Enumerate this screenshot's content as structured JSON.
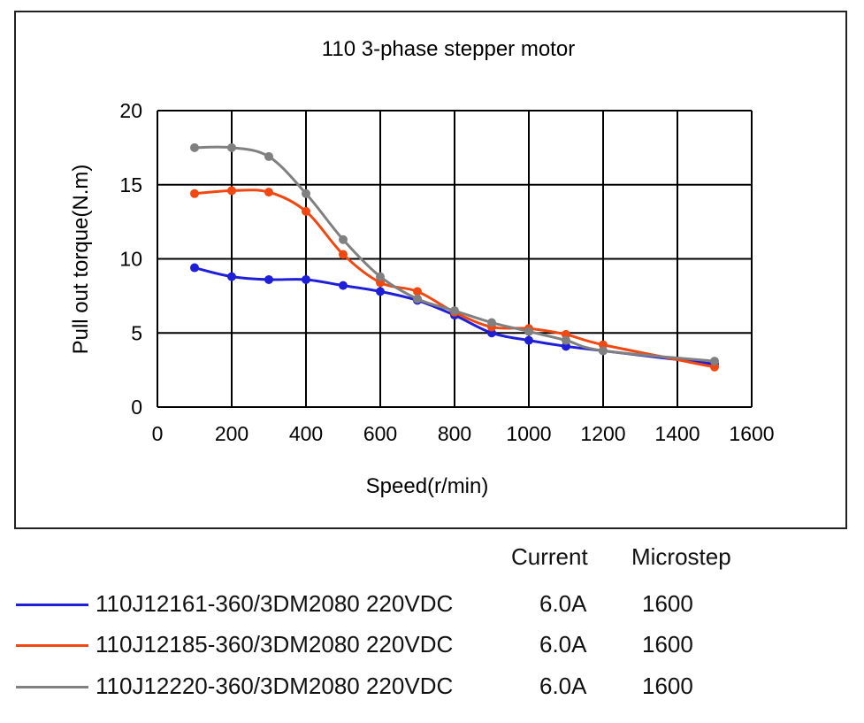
{
  "chart_data": {
    "type": "line",
    "title": "110 3-phase stepper motor",
    "xlabel": "Speed(r/min)",
    "ylabel": "Pull out torque(N.m)",
    "xlim": [
      0,
      1600
    ],
    "ylim": [
      0,
      20
    ],
    "xticks": [
      0,
      200,
      400,
      600,
      800,
      1000,
      1200,
      1400,
      1600
    ],
    "yticks": [
      0,
      5,
      10,
      15,
      20
    ],
    "grid": true,
    "series": [
      {
        "name": "110J12161-360/3DM2080 220VDC",
        "color": "#1f1fd8",
        "x": [
          100,
          200,
          300,
          400,
          500,
          600,
          700,
          800,
          900,
          1000,
          1100,
          1200,
          1500
        ],
        "y": [
          9.4,
          8.8,
          8.6,
          8.6,
          8.2,
          7.8,
          7.2,
          6.2,
          5.0,
          4.5,
          4.1,
          3.8,
          2.9
        ]
      },
      {
        "name": "110J12185-360/3DM2080 220VDC",
        "color": "#f04810",
        "x": [
          100,
          200,
          300,
          400,
          500,
          600,
          700,
          800,
          900,
          1000,
          1100,
          1200,
          1500
        ],
        "y": [
          14.4,
          14.6,
          14.5,
          13.2,
          10.3,
          8.4,
          7.8,
          6.4,
          5.4,
          5.3,
          4.9,
          4.2,
          2.7
        ]
      },
      {
        "name": "110J12220-360/3DM2080 220VDC",
        "color": "#808080",
        "x": [
          100,
          200,
          300,
          400,
          500,
          600,
          700,
          800,
          900,
          1000,
          1100,
          1200,
          1500
        ],
        "y": [
          17.5,
          17.5,
          16.9,
          14.4,
          11.3,
          8.8,
          7.3,
          6.5,
          5.7,
          5.1,
          4.5,
          3.8,
          3.1
        ]
      }
    ]
  },
  "legend": {
    "header_current": "Current",
    "header_microstep": "Microstep",
    "rows": [
      {
        "model": "110J12161-360/3DM2080 220VDC",
        "current": "6.0A",
        "microstep": "1600",
        "color": "#1f1fd8"
      },
      {
        "model": "110J12185-360/3DM2080 220VDC",
        "current": "6.0A",
        "microstep": "1600",
        "color": "#f04810"
      },
      {
        "model": "110J12220-360/3DM2080 220VDC",
        "current": "6.0A",
        "microstep": "1600",
        "color": "#808080"
      }
    ]
  }
}
